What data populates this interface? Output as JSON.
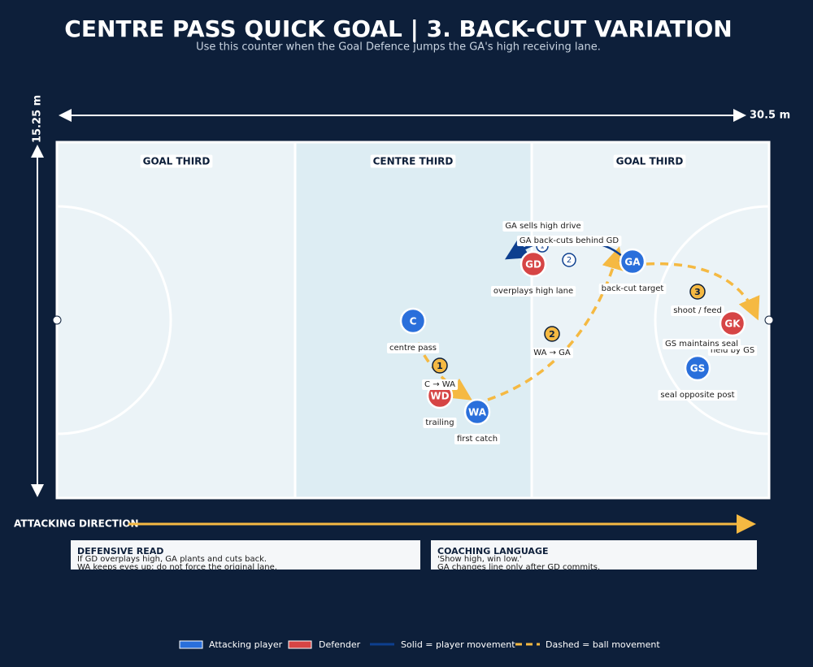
{
  "title": "CENTRE PASS QUICK GOAL | 3. BACK-CUT VARIATION",
  "subtitle": "Use this counter when the Goal Defence jumps the GA's high receiving lane.",
  "dimensions": {
    "length": "30.5 m",
    "width": "15.25 m"
  },
  "zones": [
    "GOAL THIRD",
    "CENTRE THIRD",
    "GOAL THIRD"
  ],
  "players": [
    {
      "label": "C",
      "note": "centre pass"
    },
    {
      "label": "WD",
      "note": "trailing"
    },
    {
      "label": "WA",
      "note": "first catch"
    },
    {
      "label": "GD",
      "note": "overplays high lane"
    },
    {
      "label": "GA",
      "note": "back-cut target"
    },
    {
      "label": "GK",
      "note": "held by GS"
    },
    {
      "label": "GS",
      "note": "seal opposite post"
    }
  ],
  "ball_steps": [
    {
      "number": "1",
      "label": "C → WA"
    },
    {
      "number": "2",
      "label": "WA → GA"
    },
    {
      "number": "3",
      "label": "shoot / feed"
    }
  ],
  "movements": [
    {
      "number": "1",
      "label": "GA sells high drive"
    },
    {
      "number": "2",
      "label": "GA back-cuts behind GD"
    }
  ],
  "annotations": [
    "GS maintains seal"
  ],
  "attacking_direction": "ATTACKING DIRECTION",
  "panels": [
    {
      "title": "DEFENSIVE READ",
      "lines": [
        "If GD overplays high, GA plants and cuts back.",
        "WA keeps eyes up; do not force the original lane."
      ]
    },
    {
      "title": "COACHING LANGUAGE",
      "lines": [
        "'Show high, win low.'",
        "GA changes line only after GD commits."
      ]
    }
  ],
  "legend": [
    "Attacking player",
    "Defender",
    "Solid = player movement",
    "Dashed = ball movement"
  ]
}
